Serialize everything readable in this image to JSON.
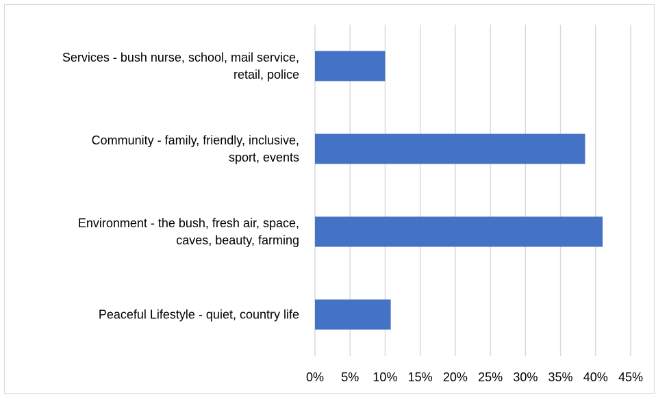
{
  "chart_data": {
    "type": "bar",
    "orientation": "horizontal",
    "title": "",
    "xlabel": "",
    "ylabel": "",
    "categories": [
      [
        "Services - bush nurse, school, mail service,",
        "retail, police"
      ],
      [
        "Community - family, friendly, inclusive,",
        "sport, events"
      ],
      [
        "Environment - the bush, fresh air, space,",
        "caves, beauty, farming"
      ],
      [
        "Peaceful Lifestyle - quiet, country life"
      ]
    ],
    "values": [
      10,
      38.5,
      41,
      10.8
    ],
    "xlim": [
      0,
      45
    ],
    "xticks": [
      0,
      5,
      10,
      15,
      20,
      25,
      30,
      35,
      40,
      45
    ],
    "tick_labels": [
      "0%",
      "5%",
      "10%",
      "15%",
      "20%",
      "25%",
      "30%",
      "35%",
      "40%",
      "45%"
    ],
    "grid": true,
    "legend": "none",
    "bar_color": "#4472c4",
    "grid_color": "#d9d9d9"
  }
}
